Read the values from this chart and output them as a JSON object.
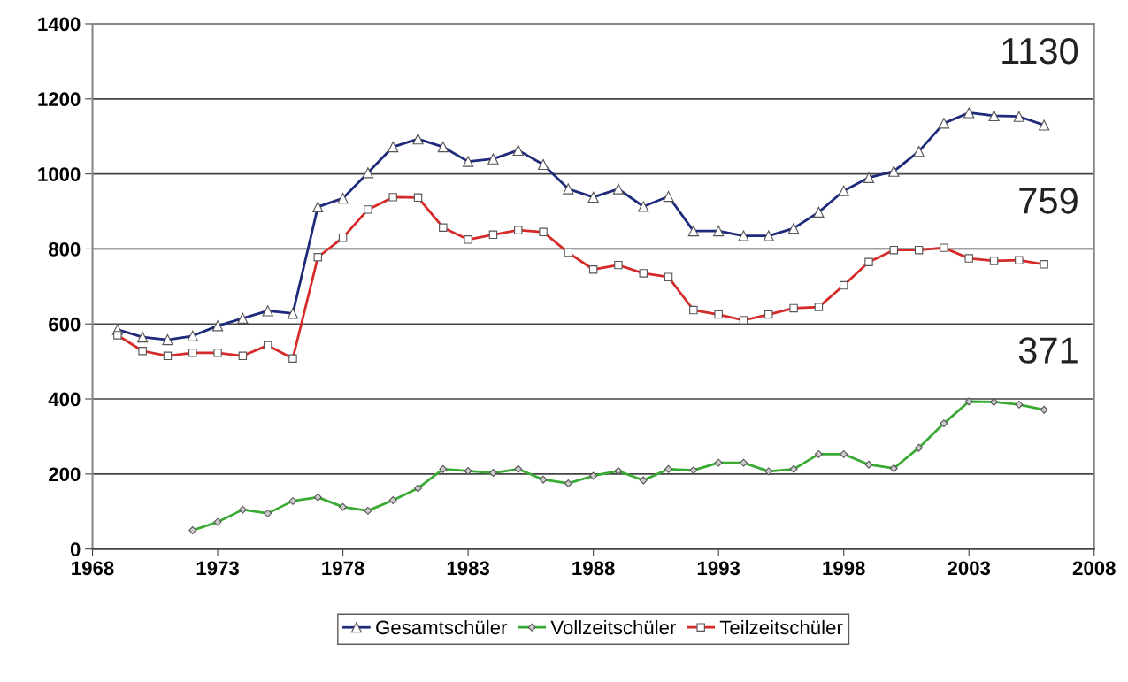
{
  "chart_data": {
    "type": "line",
    "xlim": [
      1968,
      2008
    ],
    "xticks": [
      1968,
      1973,
      1978,
      1983,
      1988,
      1993,
      1998,
      2003,
      2008
    ],
    "ylim": [
      0,
      1400
    ],
    "yticks": [
      0,
      200,
      400,
      600,
      800,
      1000,
      1200,
      1400
    ],
    "grid": "y",
    "legend": "bottom",
    "line_style": "solid",
    "series": [
      {
        "name": "Gesamtschüler",
        "color": "#1f2a7a",
        "marker": "triangle",
        "x": [
          1969,
          1970,
          1971,
          1972,
          1973,
          1974,
          1975,
          1976,
          1977,
          1978,
          1979,
          1980,
          1981,
          1982,
          1983,
          1984,
          1985,
          1986,
          1987,
          1988,
          1989,
          1990,
          1991,
          1992,
          1993,
          1994,
          1995,
          1996,
          1997,
          1998,
          1999,
          2000,
          2001,
          2002,
          2003,
          2004,
          2005,
          2006
        ],
        "values": [
          585,
          565,
          558,
          568,
          595,
          615,
          635,
          628,
          912,
          935,
          1003,
          1072,
          1093,
          1072,
          1033,
          1040,
          1063,
          1025,
          960,
          938,
          960,
          913,
          940,
          848,
          848,
          835,
          835,
          855,
          898,
          955,
          990,
          1007,
          1060,
          1135,
          1163,
          1155,
          1153,
          1130
        ]
      },
      {
        "name": "Vollzeitschüler",
        "color": "#3aaa35",
        "marker": "diamond",
        "x": [
          1972,
          1973,
          1974,
          1975,
          1976,
          1977,
          1978,
          1979,
          1980,
          1981,
          1982,
          1983,
          1984,
          1985,
          1986,
          1987,
          1988,
          1989,
          1990,
          1991,
          1992,
          1993,
          1994,
          1995,
          1996,
          1997,
          1998,
          1999,
          2000,
          2001,
          2002,
          2003,
          2004,
          2005,
          2006
        ],
        "values": [
          50,
          72,
          105,
          95,
          128,
          138,
          112,
          102,
          130,
          162,
          213,
          208,
          203,
          213,
          185,
          175,
          195,
          208,
          183,
          213,
          210,
          230,
          230,
          207,
          213,
          253,
          253,
          225,
          215,
          270,
          335,
          393,
          392,
          385,
          371
        ]
      },
      {
        "name": "Teilzeitschüler",
        "color": "#d42a2a",
        "marker": "square",
        "x": [
          1969,
          1970,
          1971,
          1972,
          1973,
          1974,
          1975,
          1976,
          1977,
          1978,
          1979,
          1980,
          1981,
          1982,
          1983,
          1984,
          1985,
          1986,
          1987,
          1988,
          1989,
          1990,
          1991,
          1992,
          1993,
          1994,
          1995,
          1996,
          1997,
          1998,
          1999,
          2000,
          2001,
          2002,
          2003,
          2004,
          2005,
          2006
        ],
        "values": [
          570,
          528,
          515,
          523,
          523,
          515,
          543,
          508,
          778,
          830,
          905,
          938,
          937,
          857,
          825,
          838,
          850,
          845,
          790,
          745,
          757,
          735,
          725,
          637,
          625,
          610,
          625,
          642,
          645,
          703,
          765,
          797,
          797,
          803,
          775,
          768,
          770,
          759
        ]
      }
    ],
    "annotations": [
      "1130",
      "759",
      "371"
    ]
  }
}
